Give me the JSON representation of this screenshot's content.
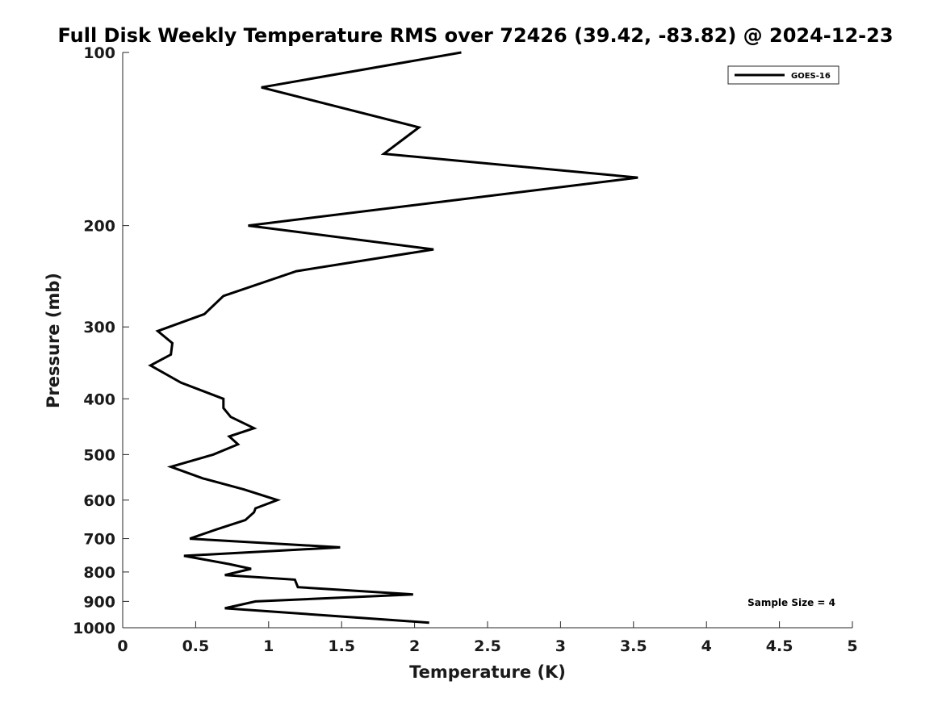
{
  "chart_data": {
    "type": "line",
    "title": "Full Disk Weekly Temperature RMS over 72426 (39.42, -83.82) @ 2024-12-23",
    "xlabel": "Temperature (K)",
    "ylabel": "Pressure (mb)",
    "xlim": [
      0,
      5
    ],
    "ylim": [
      100,
      1000
    ],
    "y_scale": "log",
    "y_reversed": true,
    "x_ticks": [
      "0",
      "0.5",
      "1",
      "1.5",
      "2",
      "2.5",
      "3",
      "3.5",
      "4",
      "4.5",
      "5"
    ],
    "y_ticks": [
      "100",
      "200",
      "300",
      "400",
      "500",
      "600",
      "700",
      "800",
      "900",
      "1000"
    ],
    "grid": false,
    "legend_position": "top-right",
    "series": [
      {
        "name": "GOES-16",
        "color": "#000000",
        "x": [
          2.32,
          0.95,
          2.03,
          1.79,
          3.53,
          0.86,
          2.13,
          1.19,
          0.69,
          0.56,
          0.24,
          0.34,
          0.33,
          0.19,
          0.4,
          0.69,
          0.69,
          0.74,
          0.9,
          0.73,
          0.79,
          0.62,
          0.33,
          0.55,
          0.83,
          1.06,
          0.91,
          0.9,
          0.84,
          0.64,
          0.46,
          1.49,
          0.42,
          0.73,
          0.88,
          0.7,
          1.18,
          1.2,
          1.99,
          0.91,
          0.7,
          2.1
        ],
        "y": [
          100,
          115,
          135,
          150,
          165,
          200,
          220,
          240,
          265,
          285,
          305,
          320,
          335,
          350,
          375,
          400,
          415,
          430,
          450,
          465,
          480,
          500,
          525,
          550,
          575,
          600,
          620,
          630,
          650,
          675,
          700,
          725,
          750,
          775,
          790,
          810,
          825,
          850,
          875,
          900,
          925,
          980
        ]
      }
    ],
    "annotations": [
      "Sample Size = 4"
    ]
  }
}
